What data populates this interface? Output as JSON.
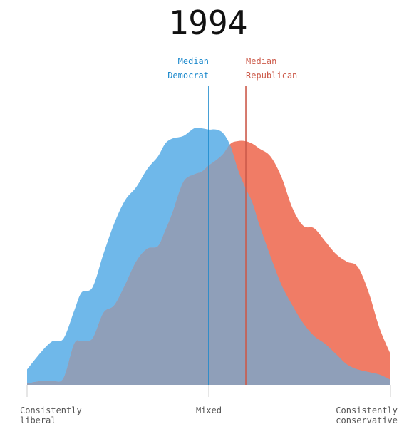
{
  "chart_data": {
    "type": "area",
    "title": "1994",
    "x_labels": [
      {
        "lines": [
          "Consistently",
          "liberal"
        ],
        "at": 0
      },
      {
        "lines": [
          "Mixed"
        ],
        "at": 50
      },
      {
        "lines": [
          "Consistently",
          "conservative"
        ],
        "at": 100
      }
    ],
    "xlim": [
      0,
      100
    ],
    "ylim": [
      0,
      100
    ],
    "grid": false,
    "colors": {
      "democrat": "#6fb8ea",
      "republican": "#f07c66",
      "overlap": "#8f9fb9",
      "democrat_line": "#1a88cc",
      "republican_line": "#cc5a4a",
      "axis": "#cccccc"
    },
    "medians": [
      {
        "party": "democrat",
        "label_lines": [
          "Median",
          "Democrat"
        ],
        "x": 50,
        "align": "end"
      },
      {
        "party": "republican",
        "label_lines": [
          "Median",
          "Republican"
        ],
        "x": 60.2,
        "align": "start"
      }
    ],
    "x": [
      0,
      4,
      7,
      10,
      13,
      15,
      18,
      21,
      24,
      27,
      30,
      33,
      36,
      38,
      40,
      43,
      46,
      48,
      50,
      52,
      54,
      56,
      58,
      60,
      62,
      64,
      67,
      70,
      73,
      76,
      79,
      82,
      85,
      88,
      91,
      94,
      97,
      100
    ],
    "series": [
      {
        "key": "democrat",
        "values": [
          6,
          13,
          17,
          18,
          29,
          36,
          38,
          51,
          63,
          72,
          77,
          84,
          89,
          94,
          96,
          97,
          100,
          100,
          99.5,
          99.5,
          98,
          93,
          84,
          77,
          71,
          62,
          50,
          39,
          31,
          24,
          19,
          16,
          12,
          8,
          6,
          5,
          4,
          2
        ]
      },
      {
        "key": "republican",
        "values": [
          0.5,
          1.5,
          1.5,
          2.5,
          16,
          17,
          18,
          28,
          31,
          39,
          48,
          53,
          54,
          60,
          67,
          79,
          82,
          83,
          85.5,
          87.5,
          90,
          94,
          95,
          95,
          94,
          92,
          89,
          81,
          69,
          62,
          61,
          56,
          51,
          48,
          46,
          36,
          22,
          12
        ]
      }
    ]
  }
}
